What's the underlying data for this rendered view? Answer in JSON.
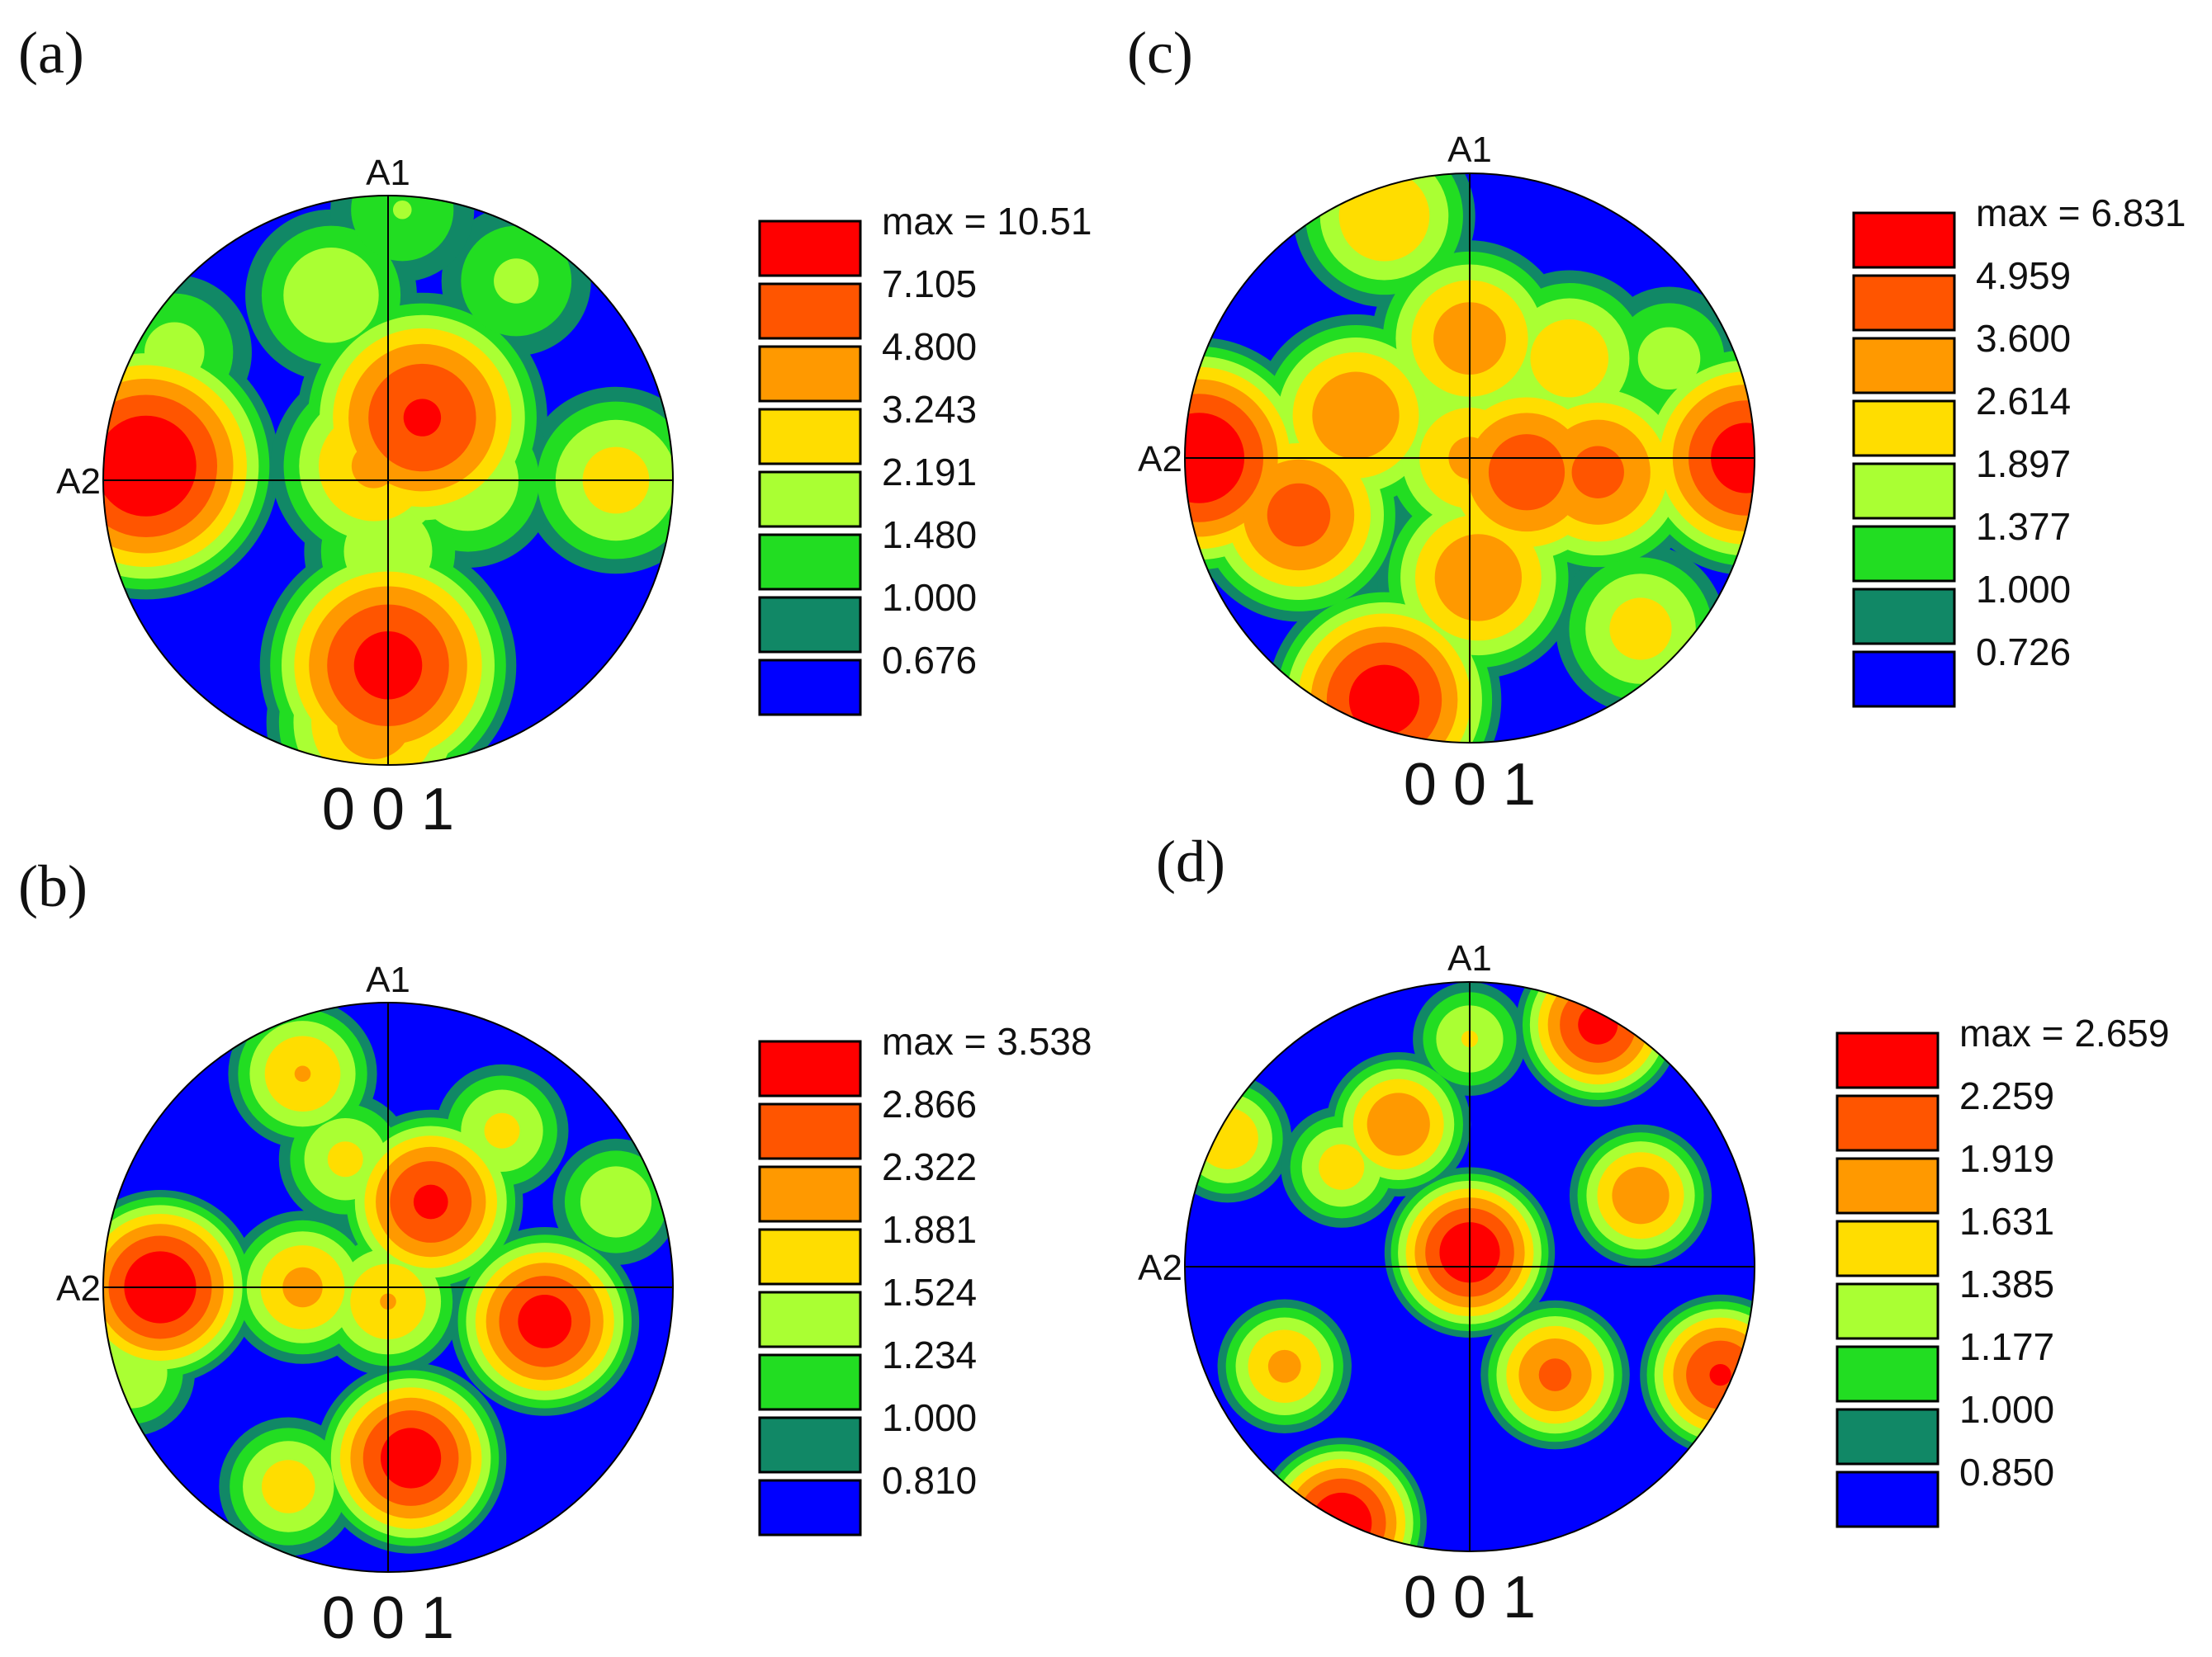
{
  "chart_data": [
    {
      "type": "contour",
      "panel_label": "(a)",
      "pole_figure": "0 0 1",
      "axis_top": "A1",
      "axis_left": "A2",
      "max_label": "max = 10.51",
      "levels": [
        "7.105",
        "4.800",
        "3.243",
        "2.191",
        "1.480",
        "1.000",
        "0.676"
      ],
      "colors": [
        "#ff0000",
        "#ff5500",
        "#ff9900",
        "#ffdd00",
        "#aaff33",
        "#22dd22",
        "#118866",
        "#0000ff"
      ],
      "peaks": [
        {
          "x": -0.85,
          "y": 0.05,
          "value": 10.5
        },
        {
          "x": 0.12,
          "y": 0.22,
          "value": 7.5
        },
        {
          "x": 0.0,
          "y": -0.65,
          "value": 8.5
        },
        {
          "x": -0.05,
          "y": -0.85,
          "value": 4.0
        },
        {
          "x": -0.05,
          "y": 0.05,
          "value": 3.5
        },
        {
          "x": 0.8,
          "y": 0.0,
          "value": 2.6
        },
        {
          "x": 0.28,
          "y": 0.0,
          "value": 2.2
        },
        {
          "x": -0.2,
          "y": 0.65,
          "value": 2.1
        },
        {
          "x": -0.75,
          "y": 0.45,
          "value": 1.7
        },
        {
          "x": 0.0,
          "y": -0.25,
          "value": 2.0
        },
        {
          "x": 0.45,
          "y": 0.7,
          "value": 1.6
        },
        {
          "x": 0.05,
          "y": 0.95,
          "value": 1.5
        }
      ]
    },
    {
      "type": "contour",
      "panel_label": "(b)",
      "pole_figure": "0 0 1",
      "axis_top": "A1",
      "axis_left": "A2",
      "max_label": "max = 3.538",
      "levels": [
        "2.866",
        "2.322",
        "1.881",
        "1.524",
        "1.234",
        "1.000",
        "0.810"
      ],
      "colors": [
        "#ff0000",
        "#ff5500",
        "#ff9900",
        "#ffdd00",
        "#aaff33",
        "#22dd22",
        "#118866",
        "#0000ff"
      ],
      "peaks": [
        {
          "x": -0.8,
          "y": 0.0,
          "value": 3.5
        },
        {
          "x": 0.15,
          "y": 0.3,
          "value": 3.0
        },
        {
          "x": 0.55,
          "y": -0.12,
          "value": 3.2
        },
        {
          "x": 0.08,
          "y": -0.6,
          "value": 3.3
        },
        {
          "x": -0.3,
          "y": 0.0,
          "value": 2.0
        },
        {
          "x": -0.3,
          "y": 0.75,
          "value": 1.9
        },
        {
          "x": -0.15,
          "y": 0.45,
          "value": 1.6
        },
        {
          "x": 0.0,
          "y": -0.05,
          "value": 1.9
        },
        {
          "x": -0.35,
          "y": -0.7,
          "value": 1.7
        },
        {
          "x": 0.8,
          "y": 0.3,
          "value": 1.5
        },
        {
          "x": 0.4,
          "y": 0.55,
          "value": 1.6
        },
        {
          "x": -0.9,
          "y": -0.3,
          "value": 1.5
        }
      ]
    },
    {
      "type": "contour",
      "panel_label": "(c)",
      "pole_figure": "0 0 1",
      "axis_top": "A1",
      "axis_left": "A2",
      "max_label": "max = 6.831",
      "levels": [
        "4.959",
        "3.600",
        "2.614",
        "1.897",
        "1.377",
        "1.000",
        "0.726"
      ],
      "colors": [
        "#ff0000",
        "#ff5500",
        "#ff9900",
        "#ffdd00",
        "#aaff33",
        "#22dd22",
        "#118866",
        "#0000ff"
      ],
      "peaks": [
        {
          "x": -0.95,
          "y": 0.0,
          "value": 6.8
        },
        {
          "x": 0.97,
          "y": 0.0,
          "value": 6.0
        },
        {
          "x": -0.3,
          "y": -0.85,
          "value": 6.0
        },
        {
          "x": 0.2,
          "y": -0.05,
          "value": 4.5
        },
        {
          "x": 0.45,
          "y": -0.05,
          "value": 4.0
        },
        {
          "x": -0.6,
          "y": -0.2,
          "value": 4.2
        },
        {
          "x": -0.4,
          "y": 0.15,
          "value": 3.5
        },
        {
          "x": 0.0,
          "y": 0.42,
          "value": 3.2
        },
        {
          "x": 0.0,
          "y": 0.0,
          "value": 2.8
        },
        {
          "x": 0.03,
          "y": -0.42,
          "value": 3.5
        },
        {
          "x": -0.3,
          "y": 0.85,
          "value": 2.6
        },
        {
          "x": 0.35,
          "y": 0.35,
          "value": 2.4
        },
        {
          "x": 0.6,
          "y": -0.6,
          "value": 2.2
        },
        {
          "x": 0.7,
          "y": 0.35,
          "value": 1.6
        }
      ]
    },
    {
      "type": "contour",
      "panel_label": "(d)",
      "pole_figure": "0 0 1",
      "axis_top": "A1",
      "axis_left": "A2",
      "max_label": "max = 2.659",
      "levels": [
        "2.259",
        "1.919",
        "1.631",
        "1.385",
        "1.177",
        "1.000",
        "0.850"
      ],
      "colors": [
        "#ff0000",
        "#ff5500",
        "#ff9900",
        "#ffdd00",
        "#aaff33",
        "#22dd22",
        "#118866",
        "#0000ff"
      ],
      "peaks": [
        {
          "x": -0.45,
          "y": -0.9,
          "value": 2.6
        },
        {
          "x": 0.0,
          "y": 0.05,
          "value": 2.6
        },
        {
          "x": 0.45,
          "y": 0.85,
          "value": 2.4
        },
        {
          "x": 0.88,
          "y": -0.38,
          "value": 2.3
        },
        {
          "x": 0.3,
          "y": -0.38,
          "value": 2.0
        },
        {
          "x": -0.25,
          "y": 0.5,
          "value": 1.9
        },
        {
          "x": 0.6,
          "y": 0.25,
          "value": 1.85
        },
        {
          "x": -0.65,
          "y": -0.35,
          "value": 1.7
        },
        {
          "x": -0.85,
          "y": 0.45,
          "value": 1.6
        },
        {
          "x": -0.45,
          "y": 0.35,
          "value": 1.5
        },
        {
          "x": 0.0,
          "y": 0.8,
          "value": 1.4
        }
      ]
    }
  ]
}
